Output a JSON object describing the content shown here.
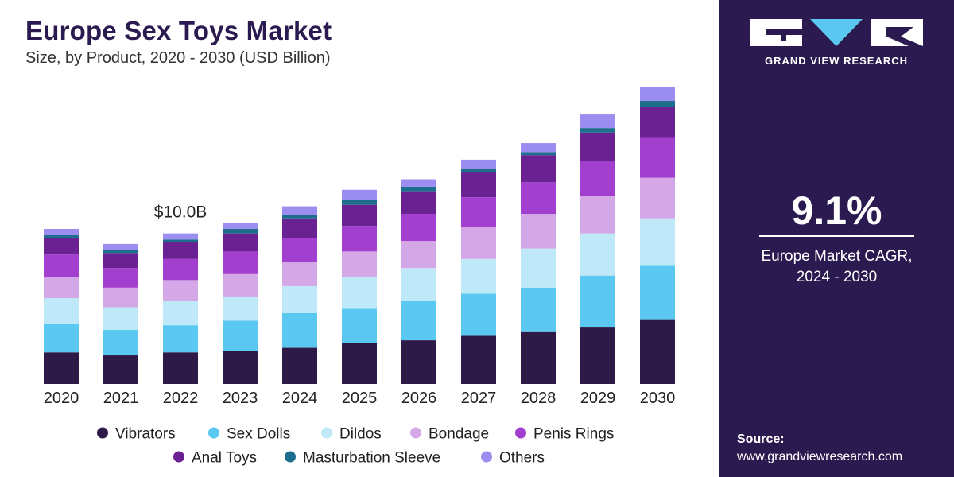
{
  "title": "Europe Sex Toys Market",
  "subtitle": "Size, by Product, 2020 - 2030 (USD Billion)",
  "annotation": "$10.0B",
  "brand": {
    "name": "GRAND VIEW RESEARCH"
  },
  "cagr": {
    "value": "9.1%",
    "label_line1": "Europe Market CAGR,",
    "label_line2": "2024 - 2030"
  },
  "source": {
    "label": "Source:",
    "url": "www.grandviewresearch.com"
  },
  "colors": {
    "left_bg": "#ffffff",
    "right_bg": "#2b1a4f",
    "title": "#2b1a4f"
  },
  "chart_data": {
    "type": "bar",
    "stacked": true,
    "title": "Europe Sex Toys Market",
    "subtitle": "Size, by Product, 2020 - 2030 (USD Billion)",
    "categories": [
      "2020",
      "2021",
      "2022",
      "2023",
      "2024",
      "2025",
      "2026",
      "2027",
      "2028",
      "2029",
      "2030"
    ],
    "annotation": {
      "category": "2022",
      "text": "$10.0B"
    },
    "series": [
      {
        "name": "Vibrators",
        "color": "#2e1a47",
        "values": [
          2.1,
          1.9,
          2.1,
          2.2,
          2.4,
          2.7,
          2.9,
          3.2,
          3.5,
          3.8,
          4.3
        ]
      },
      {
        "name": "Sex Dolls",
        "color": "#5ac8f0",
        "values": [
          1.9,
          1.7,
          1.8,
          2.0,
          2.3,
          2.3,
          2.6,
          2.8,
          2.9,
          3.4,
          3.6
        ]
      },
      {
        "name": "Dildos",
        "color": "#bfe9f8",
        "values": [
          1.7,
          1.5,
          1.6,
          1.6,
          1.8,
          2.1,
          2.2,
          2.3,
          2.6,
          2.8,
          3.1
        ]
      },
      {
        "name": "Bondage",
        "color": "#d4a8e6",
        "values": [
          1.4,
          1.3,
          1.4,
          1.5,
          1.6,
          1.7,
          1.8,
          2.1,
          2.3,
          2.5,
          2.7
        ]
      },
      {
        "name": "Penis Rings",
        "color": "#a23fcf",
        "values": [
          1.5,
          1.3,
          1.4,
          1.5,
          1.6,
          1.7,
          1.8,
          2.0,
          2.1,
          2.3,
          2.7
        ]
      },
      {
        "name": "Anal Toys",
        "color": "#6a2191",
        "values": [
          1.1,
          1.0,
          1.1,
          1.2,
          1.3,
          1.4,
          1.5,
          1.7,
          1.8,
          1.9,
          2.0
        ]
      },
      {
        "name": "Masturbation Sleeve",
        "color": "#1c6e8c",
        "values": [
          0.2,
          0.2,
          0.2,
          0.3,
          0.2,
          0.3,
          0.3,
          0.2,
          0.2,
          0.3,
          0.4
        ]
      },
      {
        "name": "Others",
        "color": "#9c8ef0",
        "values": [
          0.4,
          0.4,
          0.4,
          0.4,
          0.6,
          0.7,
          0.5,
          0.6,
          0.6,
          0.9,
          0.9
        ]
      }
    ],
    "legend": {
      "position": "bottom",
      "rows": [
        [
          "Vibrators",
          "Sex Dolls",
          "Dildos",
          "Bondage",
          "Penis Rings"
        ],
        [
          "Anal Toys",
          "Masturbation Sleeve",
          "Others"
        ]
      ]
    },
    "grid": false
  }
}
